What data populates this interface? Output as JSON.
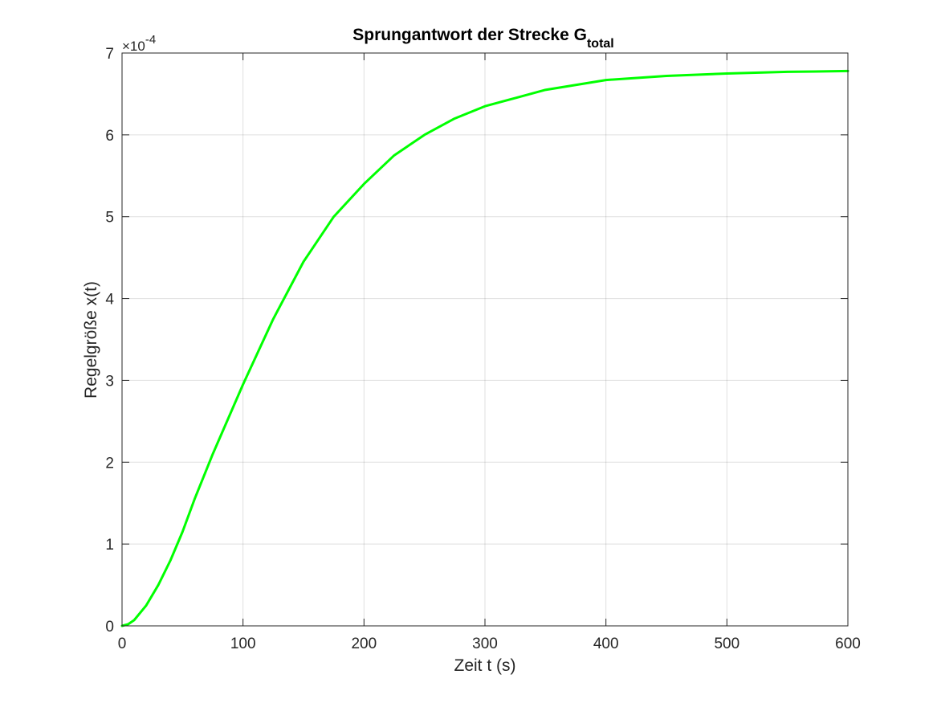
{
  "chart_data": {
    "type": "line",
    "title": "Sprungantwort der Strecke G",
    "title_subscript": "total",
    "xlabel": "Zeit t (s)",
    "ylabel": "Regelgröße x(t)",
    "y_exponent_prefix": "×10",
    "y_exponent_power": "-4",
    "xlim": [
      0,
      600
    ],
    "ylim": [
      0,
      7
    ],
    "xticks": [
      "0",
      "100",
      "200",
      "300",
      "400",
      "500",
      "600"
    ],
    "yticks": [
      "0",
      "1",
      "2",
      "3",
      "4",
      "5",
      "6",
      "7"
    ],
    "grid": true,
    "line_color": "#00ff00",
    "series": [
      {
        "x": [
          0,
          5,
          10,
          20,
          30,
          40,
          50,
          60,
          75,
          100,
          125,
          150,
          175,
          200,
          225,
          250,
          275,
          300,
          325,
          350,
          400,
          450,
          500,
          550,
          600
        ],
        "y": [
          0.0,
          0.02,
          0.07,
          0.25,
          0.5,
          0.8,
          1.15,
          1.55,
          2.1,
          2.95,
          3.75,
          4.45,
          5.0,
          5.4,
          5.75,
          6.0,
          6.2,
          6.35,
          6.45,
          6.55,
          6.67,
          6.72,
          6.75,
          6.77,
          6.78
        ]
      }
    ]
  }
}
